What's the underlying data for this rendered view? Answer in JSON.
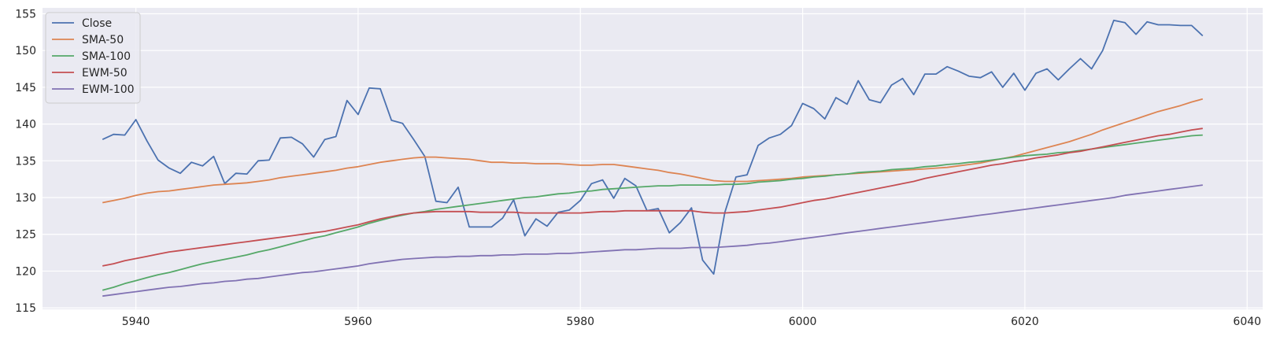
{
  "chart_data": {
    "type": "line",
    "title": "",
    "xlabel": "",
    "ylabel": "",
    "xlim": [
      5931.6,
      6041.4
    ],
    "ylim": [
      114.8,
      155.8
    ],
    "grid": true,
    "legend_position": "top-left",
    "xticks": [
      5940,
      5960,
      5980,
      6000,
      6020,
      6040
    ],
    "yticks": [
      115,
      120,
      125,
      130,
      135,
      140,
      145,
      150,
      155
    ],
    "x": [
      5937,
      5938,
      5939,
      5940,
      5941,
      5942,
      5943,
      5944,
      5945,
      5946,
      5947,
      5948,
      5949,
      5950,
      5951,
      5952,
      5953,
      5954,
      5955,
      5956,
      5957,
      5958,
      5959,
      5960,
      5961,
      5962,
      5963,
      5964,
      5965,
      5966,
      5967,
      5968,
      5969,
      5970,
      5971,
      5972,
      5973,
      5974,
      5975,
      5976,
      5977,
      5978,
      5979,
      5980,
      5981,
      5982,
      5983,
      5984,
      5985,
      5986,
      5987,
      5988,
      5989,
      5990,
      5991,
      5992,
      5993,
      5994,
      5995,
      5996,
      5997,
      5998,
      5999,
      6000,
      6001,
      6002,
      6003,
      6004,
      6005,
      6006,
      6007,
      6008,
      6009,
      6010,
      6011,
      6012,
      6013,
      6014,
      6015,
      6016,
      6017,
      6018,
      6019,
      6020,
      6021,
      6022,
      6023,
      6024,
      6025,
      6026,
      6027,
      6028,
      6029,
      6030,
      6031,
      6032,
      6033,
      6034,
      6035,
      6036
    ],
    "series": [
      {
        "name": "Close",
        "color": "#4c72b0",
        "values": [
          137.9,
          138.6,
          138.5,
          140.6,
          137.7,
          135.1,
          134.0,
          133.3,
          134.8,
          134.3,
          135.6,
          131.9,
          133.3,
          133.2,
          135.0,
          135.1,
          138.1,
          138.2,
          137.3,
          135.5,
          137.9,
          138.3,
          143.2,
          141.3,
          144.9,
          144.8,
          140.5,
          140.1,
          137.9,
          135.6,
          129.5,
          129.3,
          131.4,
          126.0,
          126.0,
          126.0,
          127.2,
          129.7,
          124.8,
          127.1,
          126.1,
          128.0,
          128.3,
          129.6,
          131.9,
          132.4,
          129.9,
          132.6,
          131.6,
          128.2,
          128.5,
          125.2,
          126.6,
          128.6,
          121.5,
          119.6,
          128.0,
          132.8,
          133.1,
          137.1,
          138.1,
          138.6,
          139.8,
          142.8,
          142.1,
          140.7,
          143.6,
          142.7,
          145.9,
          143.3,
          142.9,
          145.3,
          146.2,
          144.0,
          146.8,
          146.8,
          147.8,
          147.2,
          146.5,
          146.3,
          147.1,
          145.0,
          146.9,
          144.6,
          146.9,
          147.5,
          146.0,
          147.5,
          148.9,
          147.5,
          150.0,
          154.1,
          153.8,
          152.2,
          153.9,
          153.5,
          153.5,
          153.4,
          153.4,
          152.0
        ]
      },
      {
        "name": "SMA-50",
        "color": "#dd8452",
        "values": [
          129.3,
          129.6,
          129.9,
          130.3,
          130.6,
          130.8,
          130.9,
          131.1,
          131.3,
          131.5,
          131.7,
          131.8,
          131.9,
          132.0,
          132.2,
          132.4,
          132.7,
          132.9,
          133.1,
          133.3,
          133.5,
          133.7,
          134.0,
          134.2,
          134.5,
          134.8,
          135.0,
          135.2,
          135.4,
          135.5,
          135.5,
          135.4,
          135.3,
          135.2,
          135.0,
          134.8,
          134.8,
          134.7,
          134.7,
          134.6,
          134.6,
          134.6,
          134.5,
          134.4,
          134.4,
          134.5,
          134.5,
          134.3,
          134.1,
          133.9,
          133.7,
          133.4,
          133.2,
          132.9,
          132.6,
          132.3,
          132.2,
          132.2,
          132.2,
          132.3,
          132.4,
          132.5,
          132.6,
          132.8,
          132.9,
          133.0,
          133.1,
          133.2,
          133.3,
          133.4,
          133.5,
          133.6,
          133.7,
          133.8,
          133.9,
          134.0,
          134.1,
          134.3,
          134.5,
          134.7,
          135.0,
          135.3,
          135.6,
          136.0,
          136.4,
          136.8,
          137.2,
          137.6,
          138.1,
          138.6,
          139.2,
          139.7,
          140.2,
          140.7,
          141.2,
          141.7,
          142.1,
          142.5,
          143.0,
          143.4
        ]
      },
      {
        "name": "SMA-100",
        "color": "#55a868",
        "values": [
          117.4,
          117.8,
          118.3,
          118.7,
          119.1,
          119.5,
          119.8,
          120.2,
          120.6,
          121.0,
          121.3,
          121.6,
          121.9,
          122.2,
          122.6,
          122.9,
          123.3,
          123.7,
          124.1,
          124.5,
          124.8,
          125.2,
          125.6,
          126.0,
          126.5,
          126.9,
          127.3,
          127.6,
          127.9,
          128.1,
          128.4,
          128.6,
          128.8,
          129.0,
          129.2,
          129.4,
          129.6,
          129.8,
          130.0,
          130.1,
          130.3,
          130.5,
          130.6,
          130.8,
          130.9,
          131.1,
          131.2,
          131.3,
          131.4,
          131.5,
          131.6,
          131.6,
          131.7,
          131.7,
          131.7,
          131.7,
          131.8,
          131.8,
          131.9,
          132.1,
          132.2,
          132.3,
          132.5,
          132.6,
          132.8,
          132.9,
          133.1,
          133.2,
          133.4,
          133.5,
          133.6,
          133.8,
          133.9,
          134.0,
          134.2,
          134.3,
          134.5,
          134.6,
          134.8,
          134.9,
          135.1,
          135.3,
          135.5,
          135.7,
          135.8,
          135.9,
          136.1,
          136.2,
          136.4,
          136.6,
          136.8,
          137.0,
          137.2,
          137.4,
          137.6,
          137.8,
          138.0,
          138.2,
          138.4,
          138.5
        ]
      },
      {
        "name": "EWM-50",
        "color": "#c44e52",
        "values": [
          120.7,
          121.0,
          121.4,
          121.7,
          122.0,
          122.3,
          122.6,
          122.8,
          123.0,
          123.2,
          123.4,
          123.6,
          123.8,
          124.0,
          124.2,
          124.4,
          124.6,
          124.8,
          125.0,
          125.2,
          125.4,
          125.7,
          126.0,
          126.3,
          126.7,
          127.1,
          127.4,
          127.7,
          127.9,
          128.0,
          128.1,
          128.1,
          128.1,
          128.1,
          128.0,
          128.0,
          128.0,
          128.0,
          127.9,
          127.9,
          127.9,
          127.9,
          127.9,
          127.9,
          128.0,
          128.1,
          128.1,
          128.2,
          128.2,
          128.2,
          128.2,
          128.2,
          128.2,
          128.2,
          128.0,
          127.9,
          127.9,
          128.0,
          128.1,
          128.3,
          128.5,
          128.7,
          129.0,
          129.3,
          129.6,
          129.8,
          130.1,
          130.4,
          130.7,
          131.0,
          131.3,
          131.6,
          131.9,
          132.2,
          132.6,
          132.9,
          133.2,
          133.5,
          133.8,
          134.1,
          134.4,
          134.6,
          134.9,
          135.1,
          135.4,
          135.6,
          135.8,
          136.1,
          136.3,
          136.6,
          136.9,
          137.2,
          137.5,
          137.8,
          138.1,
          138.4,
          138.6,
          138.9,
          139.2,
          139.4
        ]
      },
      {
        "name": "EWM-100",
        "color": "#8172b3",
        "values": [
          116.6,
          116.8,
          117.0,
          117.2,
          117.4,
          117.6,
          117.8,
          117.9,
          118.1,
          118.3,
          118.4,
          118.6,
          118.7,
          118.9,
          119.0,
          119.2,
          119.4,
          119.6,
          119.8,
          119.9,
          120.1,
          120.3,
          120.5,
          120.7,
          121.0,
          121.2,
          121.4,
          121.6,
          121.7,
          121.8,
          121.9,
          121.9,
          122.0,
          122.0,
          122.1,
          122.1,
          122.2,
          122.2,
          122.3,
          122.3,
          122.3,
          122.4,
          122.4,
          122.5,
          122.6,
          122.7,
          122.8,
          122.9,
          122.9,
          123.0,
          123.1,
          123.1,
          123.1,
          123.2,
          123.2,
          123.2,
          123.3,
          123.4,
          123.5,
          123.7,
          123.8,
          124.0,
          124.2,
          124.4,
          124.6,
          124.8,
          125.0,
          125.2,
          125.4,
          125.6,
          125.8,
          126.0,
          126.2,
          126.4,
          126.6,
          126.8,
          127.0,
          127.2,
          127.4,
          127.6,
          127.8,
          128.0,
          128.2,
          128.4,
          128.6,
          128.8,
          129.0,
          129.2,
          129.4,
          129.6,
          129.8,
          130.0,
          130.3,
          130.5,
          130.7,
          130.9,
          131.1,
          131.3,
          131.5,
          131.7
        ]
      }
    ]
  }
}
